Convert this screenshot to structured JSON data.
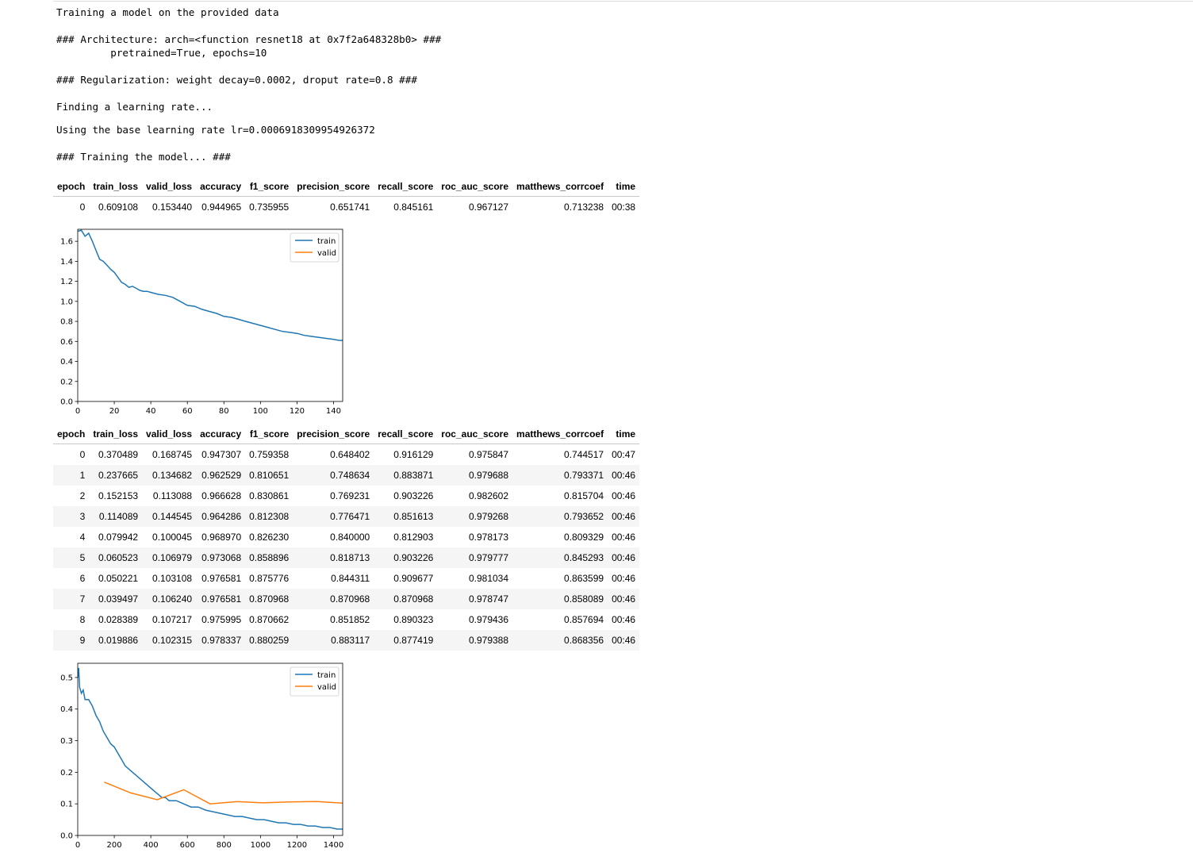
{
  "log": {
    "line1": "Training a model on the provided data",
    "line2": "### Architecture: arch=<function resnet18 at 0x7f2a648328b0> ###",
    "line3": "         pretrained=True, epochs=10",
    "line4": "### Regularization: weight decay=0.0002, droput rate=0.8 ###",
    "line5": "Finding a learning rate...",
    "line6": "Using the base learning rate lr=0.0006918309954926372",
    "line7": "### Training the model... ###"
  },
  "columns": [
    "epoch",
    "train_loss",
    "valid_loss",
    "accuracy",
    "f1_score",
    "precision_score",
    "recall_score",
    "roc_auc_score",
    "matthews_corrcoef",
    "time"
  ],
  "table1": {
    "rows": [
      [
        "0",
        "0.609108",
        "0.153440",
        "0.944965",
        "0.735955",
        "0.651741",
        "0.845161",
        "0.967127",
        "0.713238",
        "00:38"
      ]
    ]
  },
  "table2": {
    "rows": [
      [
        "0",
        "0.370489",
        "0.168745",
        "0.947307",
        "0.759358",
        "0.648402",
        "0.916129",
        "0.975847",
        "0.744517",
        "00:47"
      ],
      [
        "1",
        "0.237665",
        "0.134682",
        "0.962529",
        "0.810651",
        "0.748634",
        "0.883871",
        "0.979688",
        "0.793371",
        "00:46"
      ],
      [
        "2",
        "0.152153",
        "0.113088",
        "0.966628",
        "0.830861",
        "0.769231",
        "0.903226",
        "0.982602",
        "0.815704",
        "00:46"
      ],
      [
        "3",
        "0.114089",
        "0.144545",
        "0.964286",
        "0.812308",
        "0.776471",
        "0.851613",
        "0.979268",
        "0.793652",
        "00:46"
      ],
      [
        "4",
        "0.079942",
        "0.100045",
        "0.968970",
        "0.826230",
        "0.840000",
        "0.812903",
        "0.978173",
        "0.809329",
        "00:46"
      ],
      [
        "5",
        "0.060523",
        "0.106979",
        "0.973068",
        "0.858896",
        "0.818713",
        "0.903226",
        "0.979777",
        "0.845293",
        "00:46"
      ],
      [
        "6",
        "0.050221",
        "0.103108",
        "0.976581",
        "0.875776",
        "0.844311",
        "0.909677",
        "0.981034",
        "0.863599",
        "00:46"
      ],
      [
        "7",
        "0.039497",
        "0.106240",
        "0.976581",
        "0.870968",
        "0.870968",
        "0.870968",
        "0.978747",
        "0.858089",
        "00:46"
      ],
      [
        "8",
        "0.028389",
        "0.107217",
        "0.975995",
        "0.870662",
        "0.851852",
        "0.890323",
        "0.979436",
        "0.857694",
        "00:46"
      ],
      [
        "9",
        "0.019886",
        "0.102315",
        "0.978337",
        "0.880259",
        "0.883117",
        "0.877419",
        "0.979388",
        "0.868356",
        "00:46"
      ]
    ]
  },
  "colors": {
    "train": "#1f77b4",
    "valid": "#ff7f0e",
    "row_stripe": "#f5f5f5"
  },
  "chart_data": [
    {
      "type": "line",
      "title": "",
      "xlabel": "",
      "ylabel": "",
      "xlim": [
        0,
        145
      ],
      "ylim": [
        0,
        1.72
      ],
      "xticks": [
        0,
        20,
        40,
        60,
        80,
        100,
        120,
        140
      ],
      "yticks": [
        0.0,
        0.2,
        0.4,
        0.6,
        0.8,
        1.0,
        1.2,
        1.4,
        1.6
      ],
      "ytick_labels": [
        "0.0",
        "0.2",
        "0.4",
        "0.6",
        "0.8",
        "1.0",
        "1.2",
        "1.4",
        "1.6"
      ],
      "legend": [
        "train",
        "valid"
      ],
      "legend_position": "top-right",
      "series": [
        {
          "name": "train",
          "x": [
            0,
            2,
            4,
            6,
            8,
            10,
            12,
            14,
            16,
            18,
            20,
            22,
            24,
            26,
            28,
            30,
            32,
            34,
            36,
            38,
            40,
            44,
            48,
            52,
            56,
            60,
            64,
            68,
            72,
            76,
            80,
            84,
            88,
            92,
            96,
            100,
            104,
            108,
            112,
            116,
            120,
            124,
            128,
            132,
            136,
            140,
            143,
            145
          ],
          "y": [
            1.7,
            1.71,
            1.65,
            1.68,
            1.6,
            1.51,
            1.42,
            1.4,
            1.36,
            1.32,
            1.29,
            1.24,
            1.19,
            1.17,
            1.14,
            1.15,
            1.13,
            1.11,
            1.1,
            1.1,
            1.09,
            1.07,
            1.06,
            1.04,
            1.0,
            0.96,
            0.95,
            0.92,
            0.9,
            0.88,
            0.85,
            0.84,
            0.82,
            0.8,
            0.78,
            0.76,
            0.74,
            0.72,
            0.7,
            0.69,
            0.68,
            0.66,
            0.65,
            0.64,
            0.63,
            0.62,
            0.61,
            0.61
          ]
        },
        {
          "name": "valid",
          "x": [],
          "y": []
        }
      ]
    },
    {
      "type": "line",
      "title": "",
      "xlabel": "",
      "ylabel": "",
      "xlim": [
        0,
        1450
      ],
      "ylim": [
        0,
        0.545
      ],
      "xticks": [
        0,
        200,
        400,
        600,
        800,
        1000,
        1200,
        1400
      ],
      "yticks": [
        0.0,
        0.1,
        0.2,
        0.3,
        0.4,
        0.5
      ],
      "ytick_labels": [
        "0.0",
        "0.1",
        "0.2",
        "0.3",
        "0.4",
        "0.5"
      ],
      "legend": [
        "train",
        "valid"
      ],
      "legend_position": "top-right",
      "series": [
        {
          "name": "train",
          "x": [
            0,
            5,
            10,
            20,
            30,
            40,
            60,
            80,
            100,
            120,
            140,
            160,
            180,
            200,
            220,
            240,
            260,
            280,
            300,
            320,
            340,
            360,
            380,
            400,
            420,
            440,
            460,
            480,
            500,
            540,
            580,
            620,
            660,
            700,
            740,
            780,
            820,
            860,
            900,
            940,
            980,
            1020,
            1060,
            1100,
            1140,
            1180,
            1220,
            1260,
            1300,
            1340,
            1380,
            1420,
            1450
          ],
          "y": [
            0.5,
            0.53,
            0.47,
            0.45,
            0.46,
            0.43,
            0.43,
            0.41,
            0.38,
            0.36,
            0.33,
            0.31,
            0.29,
            0.28,
            0.26,
            0.24,
            0.22,
            0.21,
            0.2,
            0.19,
            0.18,
            0.17,
            0.16,
            0.15,
            0.14,
            0.13,
            0.12,
            0.12,
            0.11,
            0.11,
            0.1,
            0.09,
            0.09,
            0.08,
            0.075,
            0.07,
            0.065,
            0.06,
            0.06,
            0.055,
            0.05,
            0.05,
            0.045,
            0.04,
            0.04,
            0.035,
            0.035,
            0.03,
            0.03,
            0.025,
            0.025,
            0.02,
            0.02
          ]
        },
        {
          "name": "valid",
          "x": [
            145,
            290,
            435,
            580,
            725,
            870,
            1015,
            1160,
            1305,
            1450
          ],
          "y": [
            0.168745,
            0.134682,
            0.113088,
            0.144545,
            0.100045,
            0.106979,
            0.103108,
            0.10624,
            0.107217,
            0.102315
          ]
        }
      ]
    }
  ]
}
